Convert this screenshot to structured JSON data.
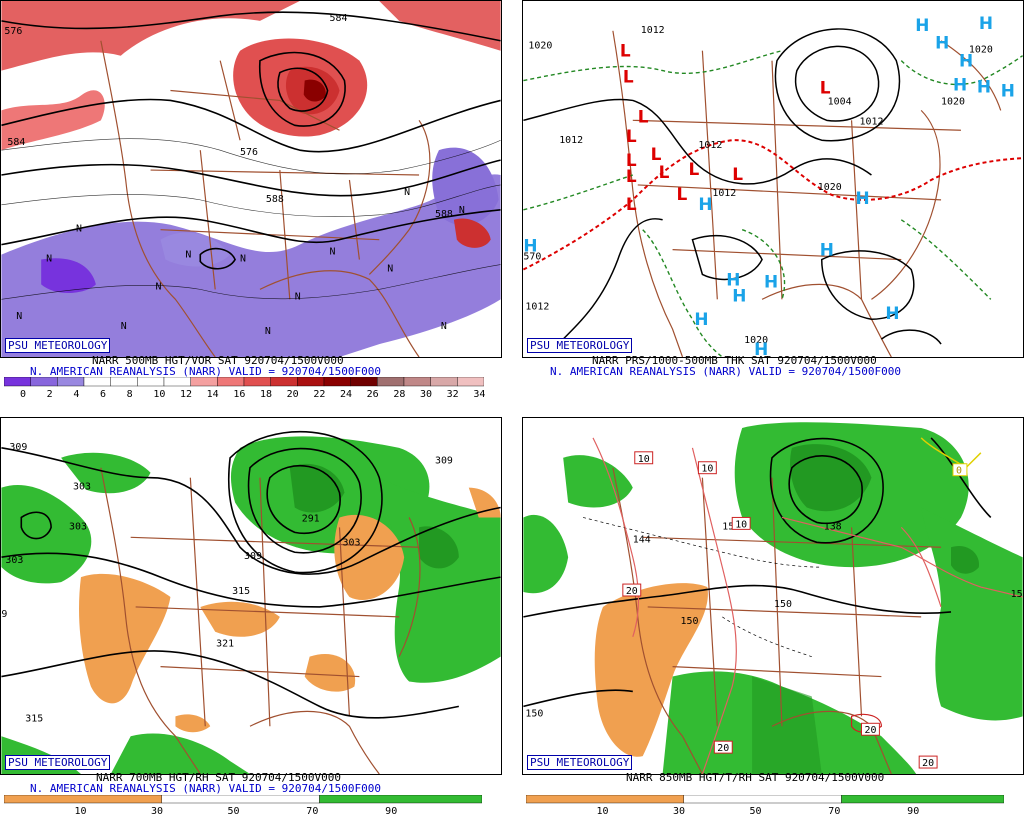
{
  "credit": "PSU METEOROLOGY",
  "colors": {
    "vort_pos": "#e05050",
    "vort_neg": "#8870d8",
    "rh_moist": "#33bb33",
    "rh_dry": "#f0a050",
    "coast": "#a05030",
    "low": "#dd0000",
    "high": "#1aa3e8",
    "thickness_red": "#dd0000",
    "thickness_green": "#228822"
  },
  "panels": [
    {
      "id": "vort500",
      "caption1": "NARR 500MB HGT/VOR SAT 920704/1500V000",
      "caption2": "N. AMERICAN REANALYSIS (NARR) VALID = 920704/1500F000",
      "contour_labels": [
        "576",
        "584",
        "576",
        "588",
        "588",
        "584"
      ],
      "colorbar": [
        "0",
        "2",
        "4",
        "6",
        "8",
        "10",
        "12",
        "14",
        "16",
        "18",
        "20",
        "22",
        "24",
        "26",
        "28",
        "30",
        "32",
        "34"
      ],
      "colorbar_colors": [
        "#7733dd",
        "#8866dd",
        "#9988e0",
        "#ffffff",
        "#ffffff",
        "#ffffff",
        "#ffffff",
        "#f4a0a0",
        "#ee7777",
        "#e05050",
        "#cc3030",
        "#aa1010",
        "#8a0000",
        "#700000",
        "#a07070",
        "#c08888",
        "#d8a8a8",
        "#f0c0c0"
      ],
      "n_marks": [
        "N",
        "N",
        "N",
        "N",
        "N",
        "N",
        "N",
        "N",
        "N",
        "N",
        "N",
        "N",
        "N",
        "N"
      ]
    },
    {
      "id": "mslp",
      "caption1": "NARR PRS/1000-500MB THK SAT 920704/1500V000",
      "caption2": "N. AMERICAN REANALYSIS (NARR) VALID = 920704/1500F000",
      "isobar_labels": [
        "1020",
        "1012",
        "1012",
        "1004",
        "1012",
        "1012",
        "1020",
        "1012",
        "1020",
        "1020",
        "1012",
        "1020",
        "570"
      ],
      "lows": [
        "L",
        "L",
        "L",
        "L",
        "L",
        "L",
        "L",
        "L",
        "L",
        "L",
        "L",
        "L",
        "L"
      ],
      "highs": [
        "H",
        "H",
        "H",
        "H",
        "H",
        "H",
        "H",
        "H",
        "H",
        "H",
        "H",
        "H",
        "H",
        "H",
        "H",
        "H",
        "H"
      ]
    },
    {
      "id": "rh700",
      "caption1": "NARR 700MB HGT/RH SAT 920704/1500V000",
      "caption2": "N. AMERICAN REANALYSIS (NARR) VALID = 920704/1500F000",
      "contour_labels": [
        "309",
        "303",
        "303",
        "309",
        "291",
        "303",
        "309",
        "315",
        "321",
        "315",
        "303",
        "9"
      ],
      "colorbar": [
        "10",
        "30",
        "50",
        "70",
        "90"
      ]
    },
    {
      "id": "t850",
      "caption1": "NARR 850MB HGT/T/RH SAT 920704/1500V000",
      "colorbar": [
        "10",
        "30",
        "50",
        "70",
        "90"
      ],
      "contour_labels": [
        "144",
        "150",
        "138",
        "150",
        "150",
        "150",
        "15"
      ],
      "temp_labels": [
        "10",
        "10",
        "20",
        "20",
        "20",
        "20",
        "10",
        "0"
      ]
    }
  ]
}
